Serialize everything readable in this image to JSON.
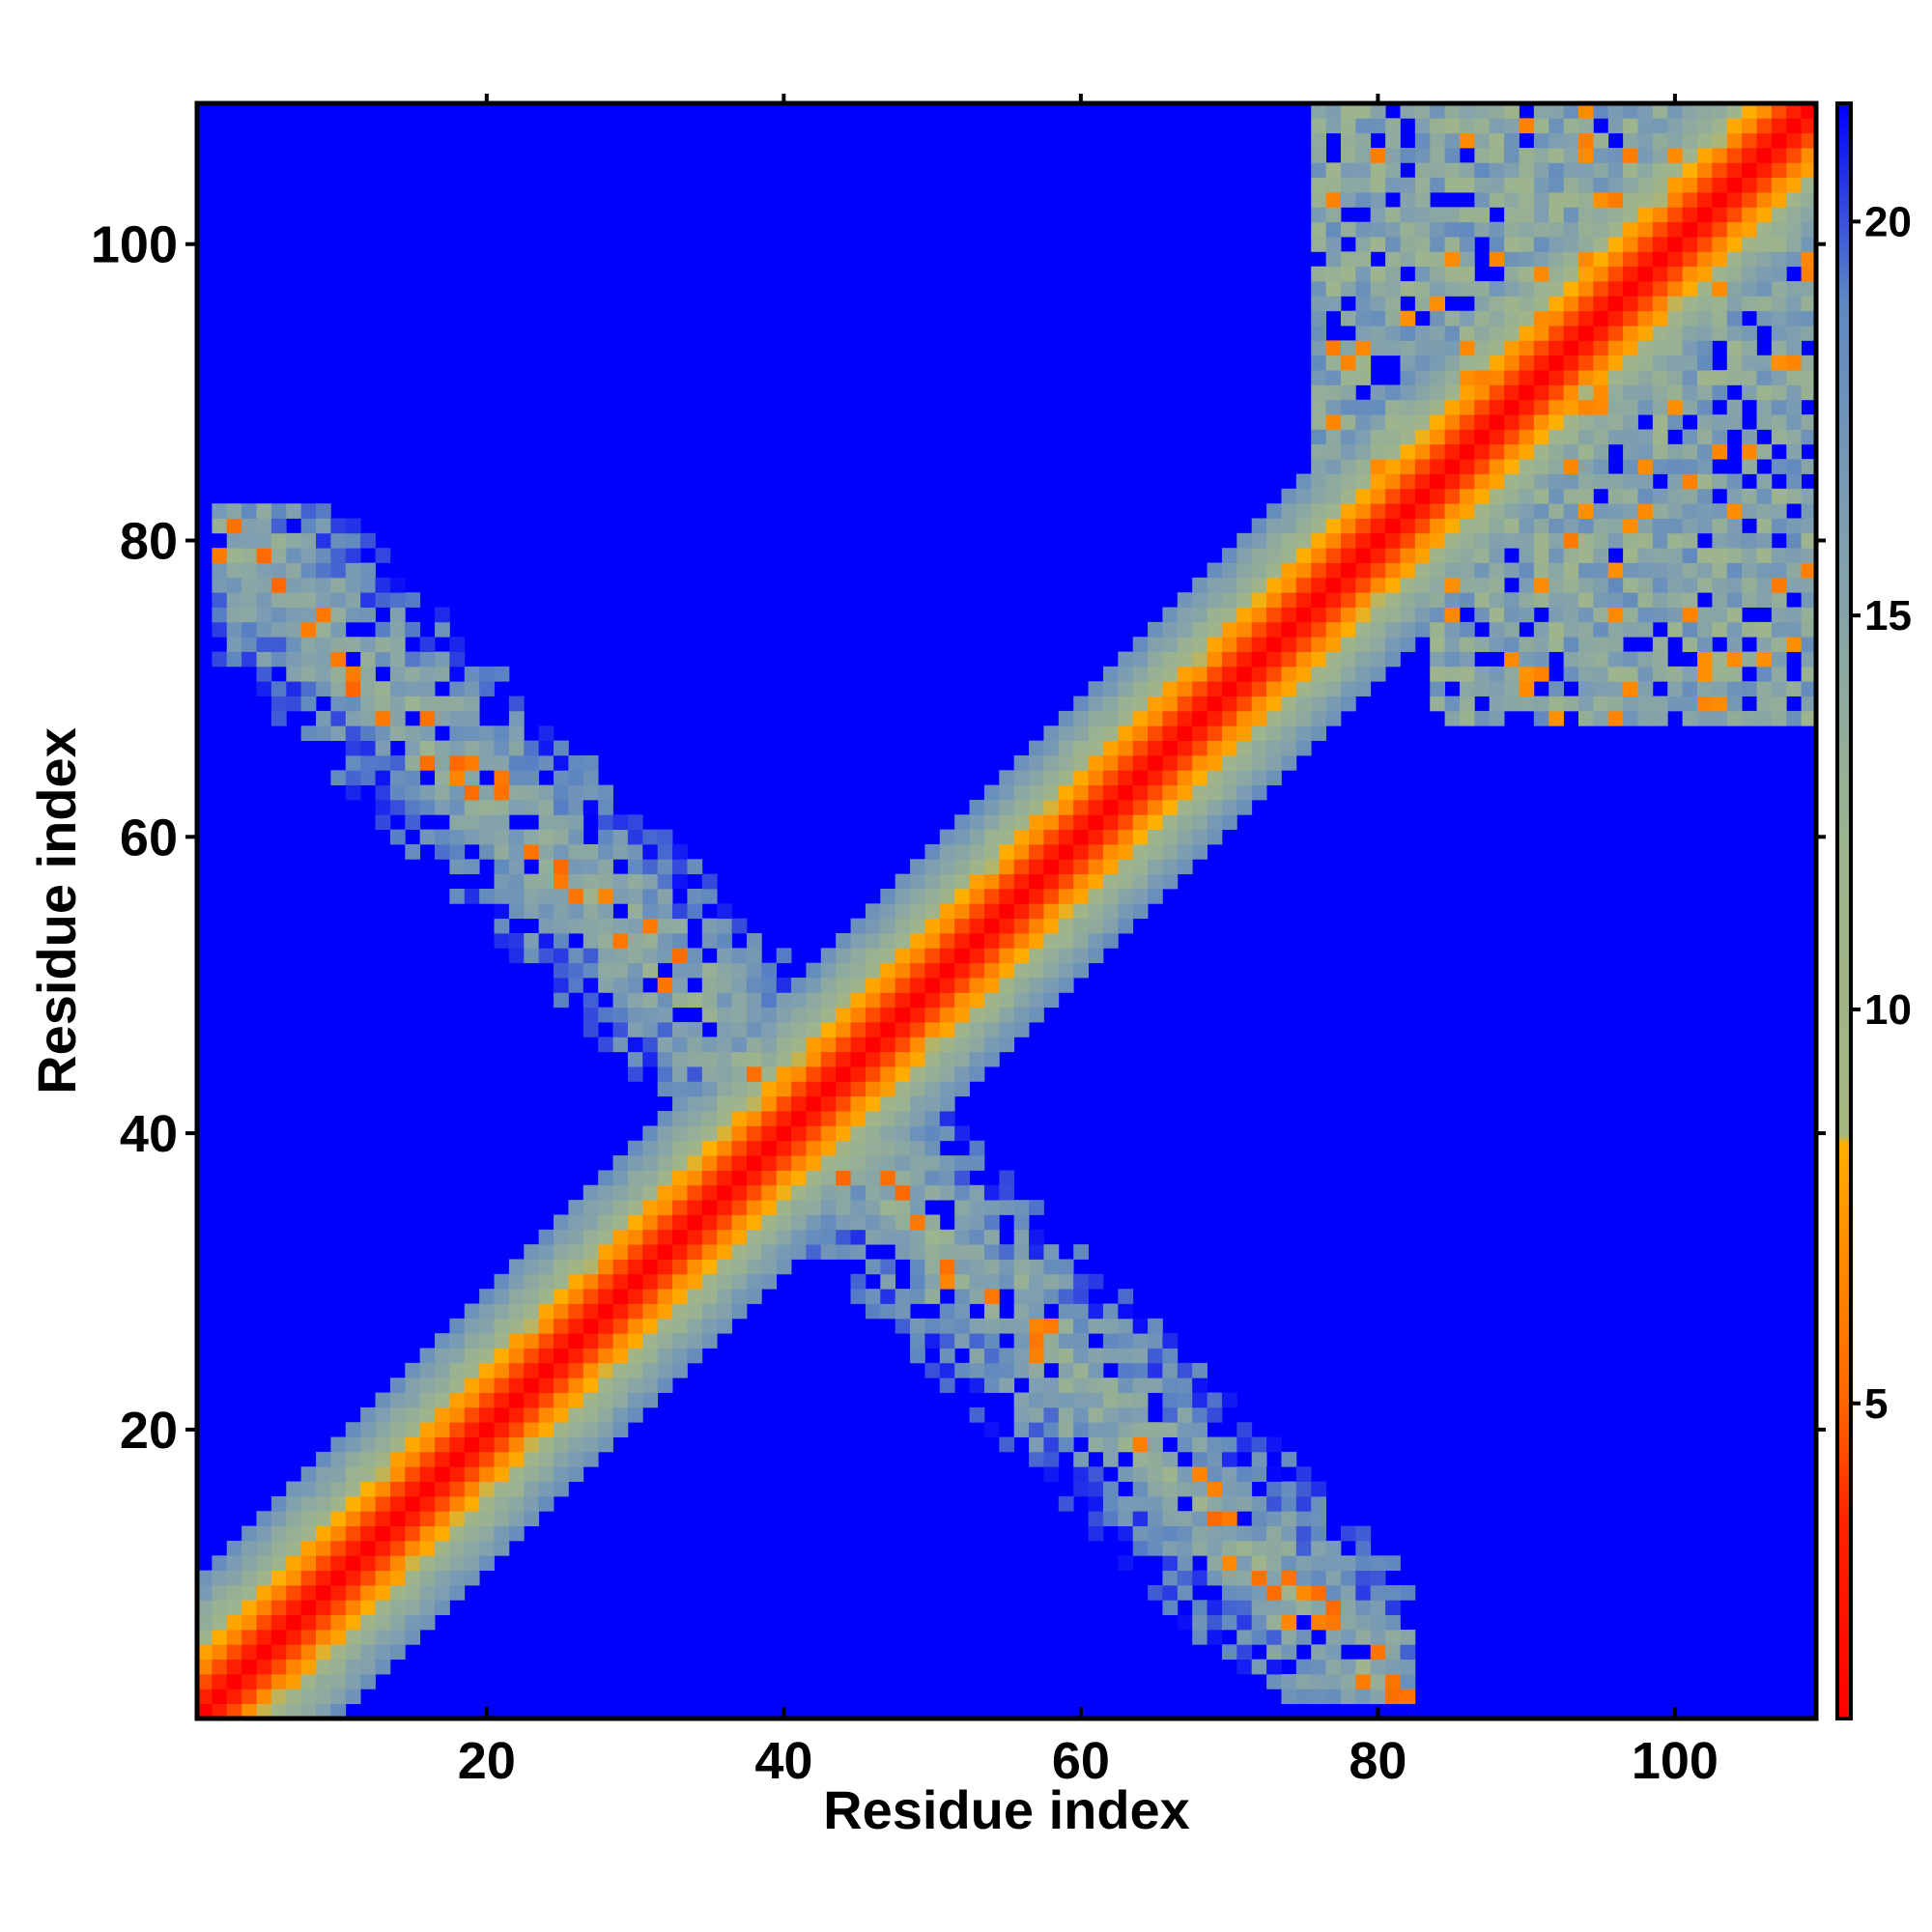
{
  "chart_data": {
    "type": "heatmap",
    "title": "",
    "xlabel": "Residue index",
    "ylabel": "Residue index",
    "n_residues": 109,
    "xlim": [
      0.5,
      109.5
    ],
    "ylim": [
      0.5,
      109.5
    ],
    "x_ticks": [
      "20",
      "40",
      "60",
      "80",
      "100"
    ],
    "y_ticks": [
      "20",
      "40",
      "60",
      "80",
      "100"
    ],
    "x_tick_values": [
      20,
      40,
      60,
      80,
      100
    ],
    "y_tick_values": [
      20,
      40,
      60,
      80,
      100
    ],
    "colorbar": {
      "range": [
        1,
        21.5
      ],
      "ticks": [
        "5",
        "10",
        "15",
        "20"
      ],
      "tick_values": [
        5,
        10,
        15,
        20
      ],
      "stops": [
        {
          "value": 1,
          "color": "#ff0000"
        },
        {
          "value": 3.5,
          "color": "#ff2200"
        },
        {
          "value": 5,
          "color": "#ff6600"
        },
        {
          "value": 7.5,
          "color": "#ff9900"
        },
        {
          "value": 8.3,
          "color": "#ffb000"
        },
        {
          "value": 8.4,
          "color": "#a5b57f"
        },
        {
          "value": 12,
          "color": "#9db48e"
        },
        {
          "value": 16,
          "color": "#7f9fb0"
        },
        {
          "value": 19,
          "color": "#5f88c0"
        },
        {
          "value": 21.5,
          "color": "#0000ff"
        }
      ]
    },
    "matrix_description_features": {
      "diagonal": {
        "from": 1,
        "to": 109,
        "width": 1
      },
      "antidiagonal_band": {
        "from_x": 3,
        "from_y": 80,
        "to_x": 82,
        "to_y": 2
      },
      "cluster": {
        "x_range": [
          76,
          109
        ],
        "y_range": [
          66,
          109
        ]
      }
    },
    "grid": false,
    "legend": "colorbar right"
  }
}
